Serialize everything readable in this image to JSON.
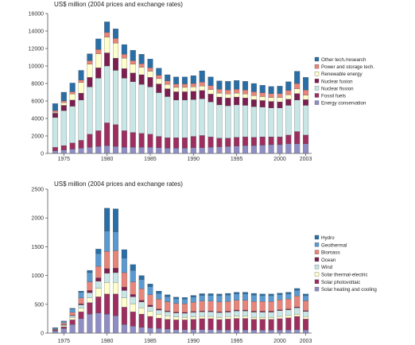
{
  "chart_data": [
    {
      "type": "bar",
      "stacked": true,
      "title": "",
      "ylabel": "US$ million (2004 prices and exchange rates)",
      "xlabel": "",
      "x_tick_labels": [
        "1975",
        "1980",
        "1985",
        "1990",
        "1995",
        "2000",
        "2003"
      ],
      "y_ticks": [
        0,
        2000,
        4000,
        6000,
        8000,
        10000,
        12000,
        14000,
        16000
      ],
      "y_tick_labels": [
        "0",
        "2000",
        "4000",
        "6000",
        "8000",
        "10000",
        "12000",
        "14000",
        "16000"
      ],
      "ylim": [
        0,
        16000
      ],
      "grid": false,
      "legend_position": "right",
      "categories": [
        "1974",
        "1975",
        "1976",
        "1977",
        "1978",
        "1979",
        "1980",
        "1981",
        "1982",
        "1983",
        "1984",
        "1985",
        "1986",
        "1987",
        "1988",
        "1989",
        "1990",
        "1991",
        "1992",
        "1993",
        "1994",
        "1995",
        "1996",
        "1997",
        "1998",
        "1999",
        "2000",
        "2001",
        "2002",
        "2003"
      ],
      "series": [
        {
          "name": "Energy conservation",
          "color": "#8e8ec4",
          "values": [
            300,
            400,
            500,
            600,
            700,
            800,
            900,
            800,
            700,
            700,
            700,
            700,
            650,
            600,
            600,
            600,
            650,
            650,
            700,
            750,
            800,
            850,
            900,
            900,
            950,
            1000,
            1000,
            1100,
            1100,
            1100
          ]
        },
        {
          "name": "Fossil fuels",
          "color": "#9c2f5f",
          "values": [
            400,
            500,
            700,
            900,
            1500,
            1800,
            2600,
            2500,
            1900,
            1700,
            1600,
            1500,
            1300,
            1200,
            1200,
            1200,
            1300,
            1400,
            1200,
            1000,
            950,
            1000,
            1000,
            950,
            950,
            900,
            900,
            1000,
            1400,
            1000
          ]
        },
        {
          "name": "Nuclear fission",
          "color": "#c8e6e6",
          "values": [
            3400,
            4000,
            4200,
            4600,
            5400,
            6000,
            6500,
            6200,
            6000,
            5800,
            5600,
            5400,
            5000,
            4700,
            4300,
            4300,
            4200,
            4200,
            4000,
            3800,
            3700,
            3700,
            3600,
            3500,
            3400,
            3300,
            3300,
            3400,
            3600,
            3400
          ]
        },
        {
          "name": "Nuclear fusion",
          "color": "#7a1f4f",
          "values": [
            500,
            600,
            700,
            800,
            1100,
            1200,
            1500,
            1400,
            1100,
            1000,
            1100,
            1100,
            1000,
            900,
            950,
            950,
            950,
            950,
            900,
            900,
            900,
            900,
            850,
            800,
            750,
            750,
            700,
            700,
            750,
            650
          ]
        },
        {
          "name": "Renewable energy",
          "color": "#ffffcc",
          "values": [
            100,
            300,
            700,
            1200,
            1500,
            1600,
            1800,
            1700,
            1200,
            1000,
            850,
            700,
            600,
            500,
            500,
            500,
            500,
            500,
            500,
            450,
            450,
            450,
            450,
            450,
            450,
            450,
            500,
            500,
            550,
            500
          ]
        },
        {
          "name": "Power and storage tech.",
          "color": "#e8857a",
          "values": [
            200,
            200,
            250,
            300,
            400,
            500,
            550,
            550,
            450,
            400,
            400,
            400,
            400,
            400,
            400,
            400,
            400,
            450,
            450,
            450,
            450,
            450,
            450,
            450,
            450,
            450,
            450,
            500,
            600,
            600
          ]
        },
        {
          "name": "Other tech./research",
          "color": "#2a6ea6",
          "values": [
            800,
            1000,
            1000,
            1100,
            800,
            1200,
            1200,
            1100,
            1100,
            1200,
            1100,
            1000,
            800,
            700,
            800,
            800,
            900,
            1300,
            1000,
            950,
            1000,
            1000,
            1000,
            950,
            850,
            800,
            850,
            1000,
            1400,
            1450
          ]
        }
      ]
    },
    {
      "type": "bar",
      "stacked": true,
      "title": "",
      "ylabel": "US$ million (2004 prices and exchange rates)",
      "xlabel": "",
      "x_tick_labels": [
        "1975",
        "1980",
        "1985",
        "1990",
        "1995",
        "2000",
        "2003"
      ],
      "y_ticks": [
        0,
        500,
        1000,
        1500,
        2000,
        2500
      ],
      "y_tick_labels": [
        "0",
        "500",
        "1000",
        "1500",
        "2000",
        "2500"
      ],
      "ylim": [
        0,
        2500
      ],
      "grid": false,
      "legend_position": "right",
      "categories": [
        "1974",
        "1975",
        "1976",
        "1977",
        "1978",
        "1979",
        "1980",
        "1981",
        "1982",
        "1983",
        "1984",
        "1985",
        "1986",
        "1987",
        "1988",
        "1989",
        "1990",
        "1991",
        "1992",
        "1993",
        "1994",
        "1995",
        "1996",
        "1997",
        "1998",
        "1999",
        "2000",
        "2001",
        "2002",
        "2003"
      ],
      "series": [
        {
          "name": "Solar heating and cooling",
          "color": "#8e8ec4",
          "values": [
            40,
            80,
            150,
            250,
            330,
            350,
            330,
            300,
            150,
            120,
            100,
            90,
            80,
            70,
            60,
            60,
            60,
            60,
            60,
            55,
            55,
            55,
            55,
            50,
            50,
            50,
            50,
            55,
            60,
            55
          ]
        },
        {
          "name": "Solar photovoltaic",
          "color": "#9c2f5f",
          "values": [
            10,
            30,
            80,
            120,
            200,
            280,
            350,
            380,
            300,
            250,
            230,
            200,
            180,
            170,
            170,
            170,
            180,
            190,
            190,
            180,
            190,
            200,
            200,
            190,
            190,
            190,
            200,
            210,
            230,
            190
          ]
        },
        {
          "name": "Solar thermal-electric",
          "color": "#ffffcc",
          "values": [
            5,
            20,
            40,
            60,
            80,
            150,
            200,
            200,
            160,
            140,
            110,
            90,
            70,
            60,
            50,
            45,
            40,
            40,
            40,
            40,
            40,
            40,
            40,
            35,
            35,
            35,
            40,
            40,
            40,
            40
          ]
        },
        {
          "name": "Wind",
          "color": "#c8e6e6",
          "values": [
            3,
            10,
            30,
            60,
            90,
            120,
            160,
            170,
            130,
            120,
            100,
            80,
            70,
            70,
            70,
            70,
            80,
            80,
            80,
            80,
            80,
            90,
            90,
            90,
            90,
            90,
            100,
            100,
            110,
            90
          ]
        },
        {
          "name": "Ocean",
          "color": "#7a1f4f",
          "values": [
            2,
            5,
            10,
            20,
            40,
            60,
            80,
            80,
            60,
            40,
            30,
            25,
            20,
            15,
            15,
            15,
            15,
            15,
            15,
            15,
            15,
            15,
            15,
            15,
            15,
            15,
            15,
            15,
            15,
            15
          ]
        },
        {
          "name": "Biomass",
          "color": "#e8857a",
          "values": [
            10,
            30,
            50,
            100,
            150,
            200,
            300,
            300,
            250,
            220,
            200,
            180,
            170,
            160,
            150,
            150,
            160,
            170,
            170,
            170,
            170,
            170,
            170,
            170,
            170,
            170,
            170,
            170,
            190,
            170
          ]
        },
        {
          "name": "Geothermal",
          "color": "#5a9ad0",
          "values": [
            20,
            30,
            60,
            100,
            160,
            220,
            350,
            330,
            250,
            200,
            160,
            140,
            100,
            90,
            80,
            80,
            90,
            100,
            100,
            110,
            110,
            110,
            110,
            110,
            100,
            100,
            90,
            90,
            100,
            90
          ]
        },
        {
          "name": "Hydro",
          "color": "#2a6ea6",
          "values": [
            5,
            5,
            10,
            20,
            40,
            80,
            400,
            400,
            150,
            100,
            70,
            50,
            40,
            30,
            30,
            30,
            30,
            30,
            30,
            30,
            30,
            30,
            30,
            30,
            30,
            30,
            30,
            30,
            30,
            30
          ]
        }
      ]
    }
  ]
}
